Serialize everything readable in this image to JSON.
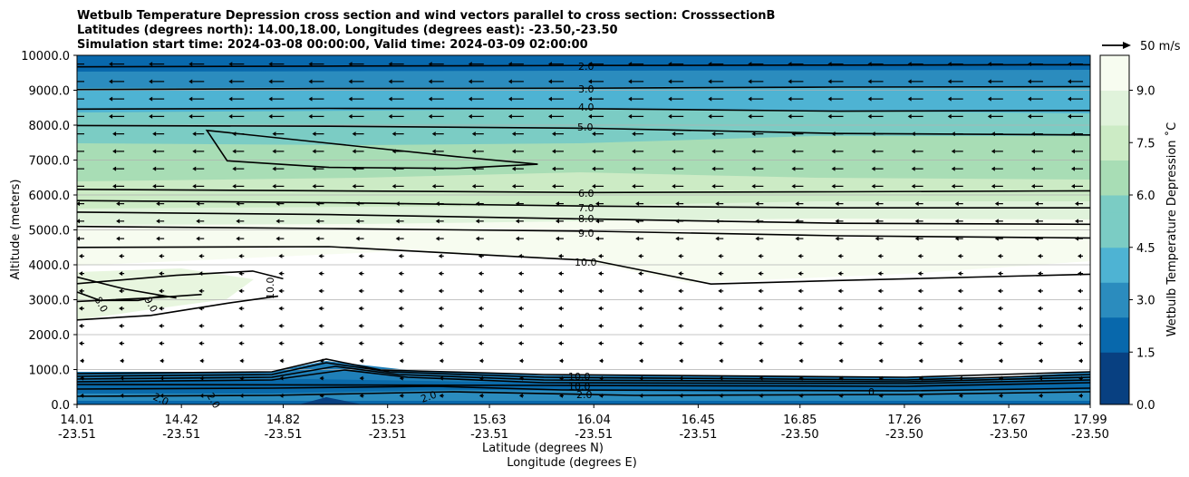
{
  "chart_data": {
    "type": "contour",
    "title_lines": [
      "Wetbulb Temperature Depression cross section and wind vectors parallel to cross section: CrosssectionB",
      "Latitudes (degrees north): 14.00,18.00, Longitudes (degrees east): -23.50,-23.50",
      "Simulation start time: 2024-03-08 00:00:00, Valid time: 2024-03-09 02:00:00"
    ],
    "ylabel": "Altitude (meters)",
    "xlabel_lat": "Latitude (degrees N)",
    "xlabel_lon": "Longitude (degrees E)",
    "ylim": [
      0,
      10000
    ],
    "yticks": [
      "0.0",
      "1000.0",
      "2000.0",
      "3000.0",
      "4000.0",
      "5000.0",
      "6000.0",
      "7000.0",
      "8000.0",
      "9000.0",
      "10000.0"
    ],
    "ytick_values": [
      0,
      1000,
      2000,
      3000,
      4000,
      5000,
      6000,
      7000,
      8000,
      9000,
      10000
    ],
    "xlim": [
      14.01,
      17.99
    ],
    "xtick_positions": [
      14.01,
      14.42,
      14.82,
      15.23,
      15.63,
      16.04,
      16.45,
      16.85,
      17.26,
      17.67,
      17.99
    ],
    "xtick_lat": [
      "14.01",
      "14.42",
      "14.82",
      "15.23",
      "15.63",
      "16.04",
      "16.45",
      "16.85",
      "17.26",
      "17.67",
      "17.99"
    ],
    "xtick_lon": [
      "-23.51",
      "-23.51",
      "-23.51",
      "-23.51",
      "-23.51",
      "-23.51",
      "-23.51",
      "-23.50",
      "-23.50",
      "-23.50",
      "-23.50"
    ],
    "colorbar": {
      "label": "Wetbulb Temperature Depression ˚C",
      "range": [
        0.0,
        10.0
      ],
      "ticks": [
        "0.0",
        "1.5",
        "3.0",
        "4.5",
        "6.0",
        "7.5",
        "9.0"
      ],
      "tick_values": [
        0.0,
        1.5,
        3.0,
        4.5,
        6.0,
        7.5,
        9.0
      ],
      "colors": [
        "#084081",
        "#0868ac",
        "#2b8cbe",
        "#4eb3d3",
        "#7bccc4",
        "#a8ddb5",
        "#ccebc5",
        "#e0f3db",
        "#f7fcf0"
      ]
    },
    "quiver_key": {
      "label": "50 m/s",
      "speed": 50
    },
    "contour_labels": [
      "2.0",
      "3.0",
      "4.0",
      "5.0",
      "6.0",
      "7.0",
      "8.0",
      "9.0",
      "10.0",
      "10.0",
      "10.0",
      "8.0",
      "9.0",
      "10.0",
      "2.0",
      "2.0",
      "2.0",
      "2.0",
      "0"
    ],
    "contour_levels": [
      {
        "label": "2.0",
        "pts": [
          [
            14.01,
            9670
          ],
          [
            15.0,
            9690
          ],
          [
            16.04,
            9710
          ],
          [
            17.0,
            9720
          ],
          [
            17.99,
            9730
          ]
        ]
      },
      {
        "label": "3.0",
        "pts": [
          [
            14.01,
            9020
          ],
          [
            15.0,
            9050
          ],
          [
            16.04,
            9060
          ],
          [
            17.0,
            9090
          ],
          [
            17.99,
            9100
          ]
        ]
      },
      {
        "label": "4.0",
        "pts": [
          [
            14.01,
            8460
          ],
          [
            15.0,
            8480
          ],
          [
            16.04,
            8470
          ],
          [
            17.0,
            8400
          ],
          [
            17.99,
            8420
          ]
        ]
      },
      {
        "label": "5.0",
        "pts": [
          [
            14.01,
            7990
          ],
          [
            15.0,
            7970
          ],
          [
            16.04,
            7910
          ],
          [
            17.0,
            7760
          ],
          [
            17.99,
            7720
          ]
        ]
      },
      {
        "label": "6.0",
        "pts": [
          [
            14.01,
            6160
          ],
          [
            15.0,
            6120
          ],
          [
            16.04,
            6070
          ],
          [
            17.0,
            6090
          ],
          [
            17.99,
            6120
          ]
        ]
      },
      {
        "label": "7.0",
        "pts": [
          [
            14.01,
            5840
          ],
          [
            15.0,
            5780
          ],
          [
            16.04,
            5680
          ],
          [
            17.0,
            5630
          ],
          [
            17.99,
            5630
          ]
        ]
      },
      {
        "label": "8.0",
        "pts": [
          [
            14.01,
            5510
          ],
          [
            15.0,
            5440
          ],
          [
            16.04,
            5310
          ],
          [
            17.0,
            5190
          ],
          [
            17.99,
            5160
          ]
        ]
      },
      {
        "label": "9.0",
        "pts": [
          [
            14.01,
            5100
          ],
          [
            15.0,
            5040
          ],
          [
            16.04,
            4960
          ],
          [
            17.0,
            4830
          ],
          [
            17.99,
            4770
          ]
        ]
      },
      {
        "label": "10.0",
        "pts": [
          [
            14.01,
            4500
          ],
          [
            15.0,
            4520
          ],
          [
            16.04,
            4120
          ],
          [
            16.5,
            3450
          ],
          [
            17.0,
            3550
          ],
          [
            17.99,
            3730
          ]
        ]
      }
    ],
    "secondary_contours": [
      {
        "label": "8.0",
        "pts": [
          [
            14.01,
            3220
          ],
          [
            14.1,
            2980
          ],
          [
            14.25,
            2980
          ],
          [
            14.35,
            3120
          ]
        ]
      },
      {
        "label": "9.0",
        "pts": [
          [
            14.01,
            2420
          ],
          [
            14.3,
            2550
          ],
          [
            14.6,
            2900
          ],
          [
            14.8,
            3100
          ]
        ]
      },
      {
        "label": "",
        "pts": [
          [
            14.01,
            2950
          ],
          [
            14.3,
            3050
          ],
          [
            14.5,
            3150
          ]
        ]
      },
      {
        "label": "",
        "pts": [
          [
            14.01,
            3650
          ],
          [
            14.2,
            3300
          ],
          [
            14.4,
            3050
          ]
        ]
      },
      {
        "label": "",
        "pts": [
          [
            14.01,
            3460
          ],
          [
            14.4,
            3700
          ],
          [
            14.7,
            3820
          ],
          [
            14.82,
            3600
          ]
        ]
      },
      {
        "label": "5.0-loop",
        "pts": [
          [
            14.52,
            7850
          ],
          [
            15.0,
            7480
          ],
          [
            15.5,
            7100
          ],
          [
            15.82,
            6880
          ],
          [
            15.5,
            6760
          ],
          [
            15.0,
            6790
          ],
          [
            14.6,
            6980
          ]
        ]
      }
    ]
  }
}
